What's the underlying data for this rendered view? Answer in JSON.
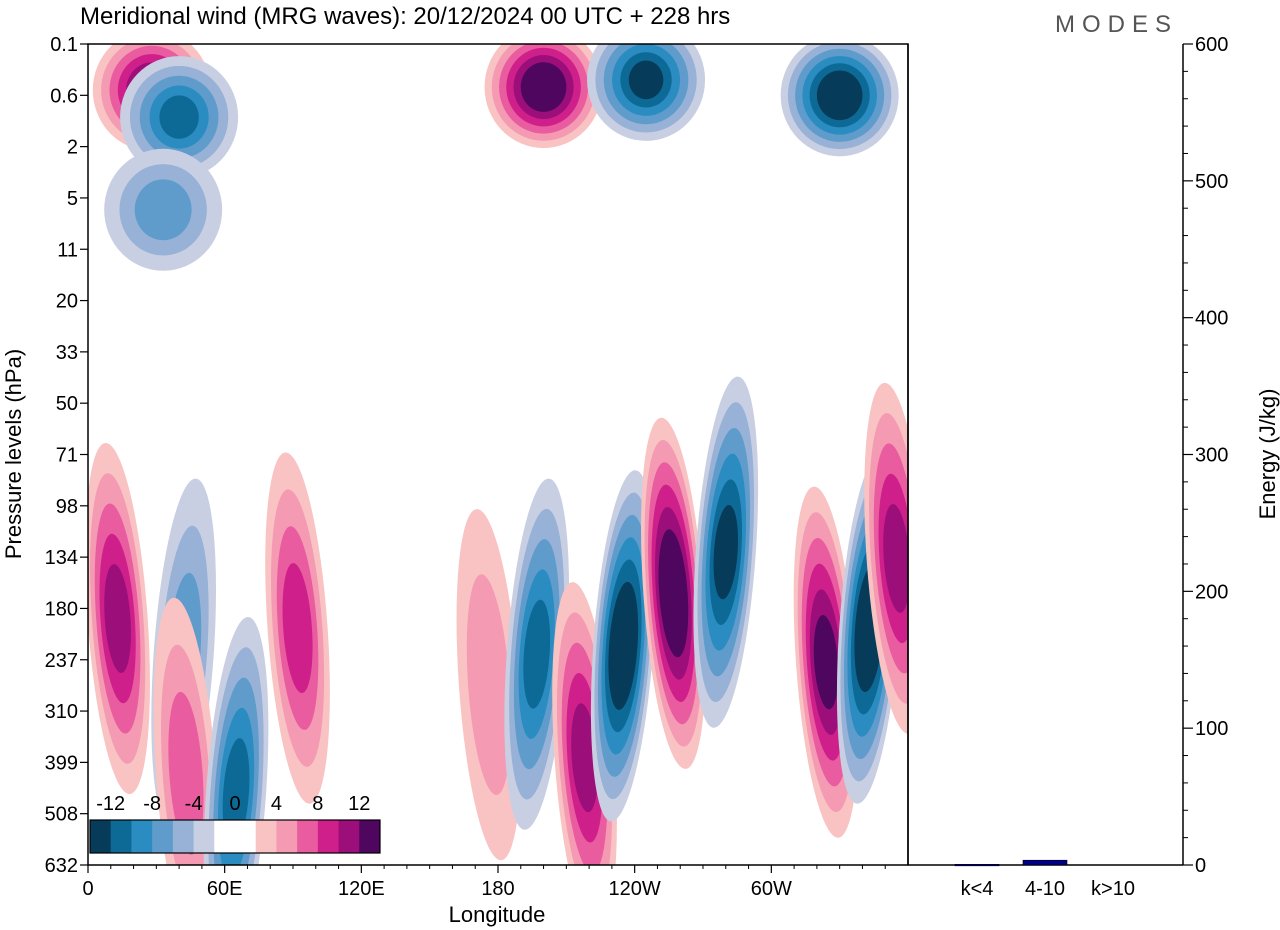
{
  "header": {
    "title": "Meridional wind (MRG waves):  20/12/2024  00 UTC  + 228 hrs",
    "brand": "MODES"
  },
  "chart_data": [
    {
      "type": "heatmap",
      "xlabel": "Longitude",
      "ylabel": "Pressure levels (hPa)",
      "xticks": [
        "0",
        "60E",
        "120E",
        "180",
        "120W",
        "60W"
      ],
      "xtick_degrees": [
        0,
        60,
        120,
        180,
        240,
        300
      ],
      "xlim": [
        0,
        360
      ],
      "yticks": [
        "0.1",
        "0.6",
        "2",
        "5",
        "11",
        "20",
        "33",
        "50",
        "71",
        "98",
        "134",
        "180",
        "237",
        "310",
        "399",
        "508",
        "632"
      ],
      "colorbar": {
        "labels": [
          "-12",
          "-8",
          "-4",
          "0",
          "4",
          "8",
          "12"
        ],
        "levels": [
          -14,
          -12,
          -10,
          -8,
          -6,
          -4,
          -2,
          0,
          2,
          4,
          6,
          8,
          10,
          12,
          14
        ],
        "colors": [
          "#073b5a",
          "#0d6a96",
          "#2a8cc0",
          "#5f9ccb",
          "#97b2d6",
          "#c9cfe3",
          "#ffffff",
          "#ffffff",
          "#f9c3c3",
          "#f59ab3",
          "#e95c9f",
          "#cf1f8a",
          "#9c0f7a",
          "#4f065f"
        ]
      },
      "features": [
        {
          "kind": "pos",
          "lon": 13,
          "p": 190,
          "level": 10
        },
        {
          "kind": "neg",
          "lon": 42,
          "p": 230,
          "level": -6
        },
        {
          "kind": "pos",
          "lon": 43,
          "p": 420,
          "level": 6
        },
        {
          "kind": "neg",
          "lon": 65,
          "p": 460,
          "level": -10
        },
        {
          "kind": "pos",
          "lon": 92,
          "p": 200,
          "level": 8
        },
        {
          "kind": "pos",
          "lon": 176,
          "p": 270,
          "level": 4
        },
        {
          "kind": "neg",
          "lon": 197,
          "p": 230,
          "level": -10
        },
        {
          "kind": "pos",
          "lon": 218,
          "p": 390,
          "level": 10
        },
        {
          "kind": "neg",
          "lon": 235,
          "p": 220,
          "level": -14
        },
        {
          "kind": "pos",
          "lon": 257,
          "p": 165,
          "level": 14
        },
        {
          "kind": "neg",
          "lon": 280,
          "p": 130,
          "level": -12
        },
        {
          "kind": "pos",
          "lon": 324,
          "p": 240,
          "level": 12
        },
        {
          "kind": "neg",
          "lon": 343,
          "p": 200,
          "level": -14
        },
        {
          "kind": "pos",
          "lon": 355,
          "p": 135,
          "level": 10
        },
        {
          "kind": "pos",
          "lon": 200,
          "p": 0.45,
          "level": 14
        },
        {
          "kind": "neg",
          "lon": 330,
          "p": 0.6,
          "level": -14
        },
        {
          "kind": "neg",
          "lon": 245,
          "p": 0.35,
          "level": -12
        },
        {
          "kind": "pos",
          "lon": 28,
          "p": 0.5,
          "level": 12
        },
        {
          "kind": "neg",
          "lon": 40,
          "p": 1.0,
          "level": -10
        },
        {
          "kind": "neg",
          "lon": 33,
          "p": 6,
          "level": -6
        }
      ]
    },
    {
      "type": "bar",
      "ylabel": "Energy (J/kg)",
      "categories": [
        "k<4",
        "4-10",
        "k>10"
      ],
      "values": [
        0.5,
        3.5,
        0
      ],
      "ylim": [
        0,
        600
      ],
      "yticks": [
        "0",
        "100",
        "200",
        "300",
        "400",
        "500",
        "600"
      ],
      "bar_color": "#00008b"
    }
  ]
}
